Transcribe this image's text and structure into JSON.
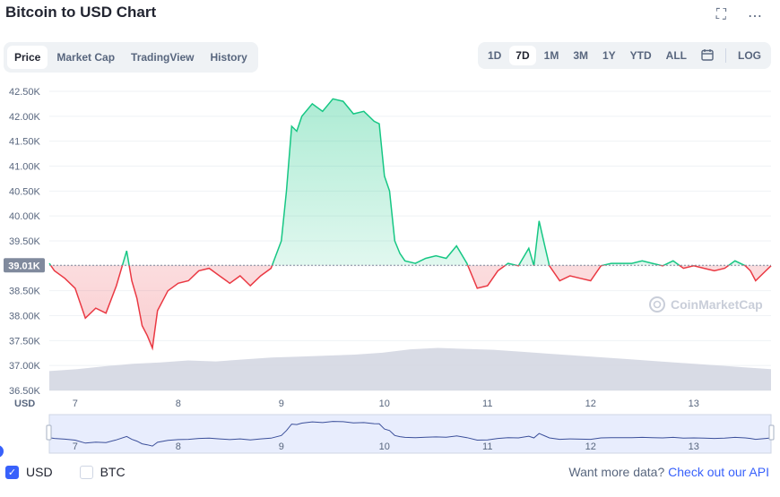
{
  "header": {
    "title": "Bitcoin to USD Chart"
  },
  "tabs": [
    "Price",
    "Market Cap",
    "TradingView",
    "History"
  ],
  "ranges": [
    "1D",
    "7D",
    "1M",
    "3M",
    "1Y",
    "YTD",
    "ALL"
  ],
  "log_label": "LOG",
  "watermark": "CoinMarketCap",
  "currency_label": "USD",
  "legend": {
    "usd": "USD",
    "btc": "BTC"
  },
  "more_data": {
    "prefix": "Want more data?",
    "link": "Check out our API"
  },
  "colors": {
    "up": "#16c784",
    "down": "#ea3943",
    "volume": "#d1d5e0",
    "navigator": "#e8edfd",
    "navigator_line": "#3b4f9a",
    "baseline": "#808a9d"
  },
  "chart_data": {
    "type": "line",
    "title": "Bitcoin to USD Chart",
    "ylabel": "USD",
    "x_ticks": [
      "7",
      "8",
      "9",
      "10",
      "11",
      "12",
      "13"
    ],
    "y_ticks": [
      "36.50K",
      "37.00K",
      "37.50K",
      "38.00K",
      "38.50K",
      "39.00K",
      "39.50K",
      "40.00K",
      "40.50K",
      "41.00K",
      "41.50K",
      "42.00K",
      "42.50K"
    ],
    "ylim": [
      36500,
      42500
    ],
    "xlim": [
      6.75,
      13.75
    ],
    "baseline": 39010,
    "baseline_label": "39.01K",
    "grid": true,
    "series": [
      {
        "x": [
          6.75,
          6.8,
          6.9,
          7.0,
          7.1,
          7.2,
          7.3,
          7.4,
          7.5,
          7.55,
          7.6,
          7.65,
          7.7,
          7.75,
          7.8,
          7.9,
          8.0,
          8.1,
          8.2,
          8.3,
          8.4,
          8.5,
          8.6,
          8.7,
          8.8,
          8.9,
          9.0,
          9.05,
          9.1,
          9.15,
          9.2,
          9.3,
          9.4,
          9.5,
          9.6,
          9.7,
          9.8,
          9.9,
          9.95,
          10.0,
          10.05,
          10.1,
          10.15,
          10.2,
          10.3,
          10.4,
          10.5,
          10.6,
          10.7,
          10.8,
          10.9,
          11.0,
          11.1,
          11.2,
          11.3,
          11.4,
          11.45,
          11.5,
          11.55,
          11.6,
          11.7,
          11.8,
          11.9,
          12.0,
          12.1,
          12.2,
          12.3,
          12.4,
          12.5,
          12.6,
          12.7,
          12.8,
          12.9,
          13.0,
          13.1,
          13.2,
          13.3,
          13.4,
          13.5,
          13.55,
          13.6,
          13.7,
          13.75
        ],
        "y": [
          39050,
          38900,
          38750,
          38550,
          37950,
          38150,
          38050,
          38600,
          39300,
          38700,
          38350,
          37800,
          37600,
          37350,
          38100,
          38500,
          38650,
          38700,
          38900,
          38950,
          38800,
          38650,
          38800,
          38600,
          38800,
          38950,
          39500,
          40500,
          41800,
          41700,
          42000,
          42250,
          42100,
          42350,
          42300,
          42050,
          42100,
          41900,
          41850,
          40800,
          40500,
          39500,
          39250,
          39100,
          39050,
          39150,
          39200,
          39150,
          39400,
          39050,
          38550,
          38600,
          38900,
          39050,
          39000,
          39350,
          39000,
          39900,
          39450,
          39000,
          38700,
          38800,
          38750,
          38700,
          39000,
          39050,
          39050,
          39050,
          39100,
          39050,
          39000,
          39100,
          38950,
          39000,
          38950,
          38900,
          38950,
          39100,
          39000,
          38900,
          38700,
          38900,
          39000
        ]
      }
    ],
    "volume": [
      40,
      44,
      50,
      55,
      58,
      62,
      60,
      64,
      68,
      70,
      72,
      74,
      78,
      85,
      88,
      86,
      84,
      80,
      76,
      72,
      68,
      64,
      60,
      56,
      52,
      48,
      44
    ]
  }
}
